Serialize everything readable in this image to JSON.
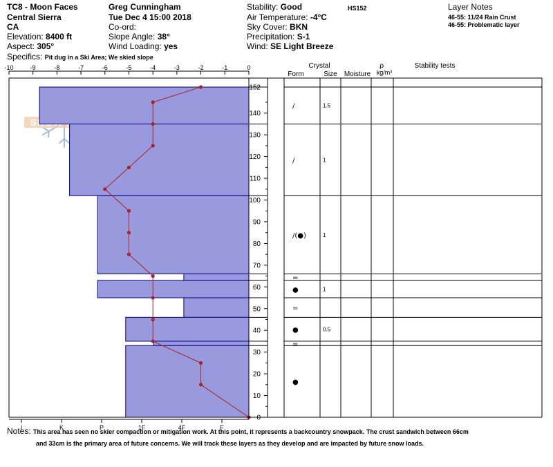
{
  "header": {
    "col1": {
      "title": "TC8 - Moon Faces",
      "range": "Central Sierra",
      "state": "CA",
      "elevation_label": "Elevation:",
      "elevation": "8400 ft",
      "aspect_label": "Aspect:",
      "aspect": "305°",
      "specifics_label": "Specifics:",
      "specifics": "Pit dug in a Ski Area; We skied slope"
    },
    "col2": {
      "observer": "Greg Cunningham",
      "datetime": "Tue Dec 4 15:00 2018",
      "coord_label": "Co-ord:",
      "slope_label": "Slope Angle:",
      "slope": "38°",
      "wind_loading_label": "Wind Loading:",
      "wind_loading": "yes"
    },
    "col3": {
      "stability_label": "Stability:",
      "stability": "Good",
      "hs": "HS152",
      "air_temp_label": "Air Temperature:",
      "air_temp": "-4°C",
      "sky_label": "Sky Cover:",
      "sky": "BKN",
      "precip_label": "Precipitation:",
      "precip": "S-1",
      "wind_label": "Wind:",
      "wind": "SE Light Breeze"
    },
    "layer_notes": {
      "title": "Layer Notes",
      "items": [
        "46-55: 11/24 Rain Crust",
        "46-55: Problematic layer"
      ]
    }
  },
  "logo_text": "SNOW PILOT",
  "table": {
    "crystal_label": "Crystal",
    "form_label": "Form",
    "size_label": "Size",
    "moisture_label": "Moisture",
    "rho_label": "ρ",
    "density_label": "kg/m³",
    "stability_tests_label": "Stability tests"
  },
  "chart_data": {
    "type": "bar",
    "temperature_axis": {
      "ticks": [
        -10,
        -9,
        -8,
        -7,
        -6,
        -5,
        -4,
        -3,
        -2,
        -1,
        0
      ],
      "range": [
        -10,
        0
      ]
    },
    "hardness_axis": {
      "ticks": [
        "I",
        "K",
        "P",
        "1F",
        "4F",
        "F"
      ]
    },
    "height_axis": {
      "ticks": [
        0,
        10,
        20,
        30,
        40,
        50,
        60,
        70,
        80,
        90,
        100,
        110,
        120,
        130,
        140,
        152
      ],
      "range": [
        0,
        152
      ]
    },
    "hardness_layers": [
      {
        "top": 152,
        "bottom": 135,
        "hardness": 0.45
      },
      {
        "top": 135,
        "bottom": 102,
        "hardness": 1.2
      },
      {
        "top": 102,
        "bottom": 66,
        "hardness": 1.9
      },
      {
        "top": 66,
        "bottom": 63,
        "hardness": 4.05
      },
      {
        "top": 63,
        "bottom": 55,
        "hardness": 1.9
      },
      {
        "top": 55,
        "bottom": 46,
        "hardness": 4.05
      },
      {
        "top": 46,
        "bottom": 35,
        "hardness": 2.6
      },
      {
        "top": 35,
        "bottom": 33,
        "hardness": 3.3
      },
      {
        "top": 33,
        "bottom": 0,
        "hardness": 2.6
      }
    ],
    "temperature_profile": [
      {
        "depth": 152,
        "temp": -2
      },
      {
        "depth": 145,
        "temp": -4
      },
      {
        "depth": 135,
        "temp": -4
      },
      {
        "depth": 125,
        "temp": -4
      },
      {
        "depth": 115,
        "temp": -5
      },
      {
        "depth": 105,
        "temp": -6
      },
      {
        "depth": 95,
        "temp": -5
      },
      {
        "depth": 85,
        "temp": -5
      },
      {
        "depth": 75,
        "temp": -5
      },
      {
        "depth": 65,
        "temp": -4
      },
      {
        "depth": 55,
        "temp": -4
      },
      {
        "depth": 45,
        "temp": -4
      },
      {
        "depth": 35,
        "temp": -4
      },
      {
        "depth": 25,
        "temp": -2
      },
      {
        "depth": 15,
        "temp": -2
      },
      {
        "depth": 0,
        "temp": 0
      }
    ],
    "layer_boundaries": [
      152,
      135,
      102,
      66,
      63,
      55,
      46,
      35,
      33,
      0
    ],
    "layers": [
      {
        "top": 152,
        "bottom": 135,
        "form": "/",
        "size": "1.5"
      },
      {
        "top": 135,
        "bottom": 102,
        "form": "/",
        "size": "1"
      },
      {
        "top": 102,
        "bottom": 66,
        "form": "/(●)",
        "size": "1"
      },
      {
        "top": 66,
        "bottom": 63,
        "form": "=",
        "size": ""
      },
      {
        "top": 63,
        "bottom": 55,
        "form": "●",
        "size": "1"
      },
      {
        "top": 55,
        "bottom": 46,
        "form": "=",
        "size": ""
      },
      {
        "top": 46,
        "bottom": 35,
        "form": "●",
        "size": "0.5"
      },
      {
        "top": 35,
        "bottom": 33,
        "form": "=",
        "size": ""
      },
      {
        "top": 33,
        "bottom": 0,
        "form": "●",
        "size": ""
      }
    ]
  },
  "notes": {
    "label": "Notes:",
    "line1": "This area has seen no skier compaction or mitigation work.  At this point, it represents a backcountry snowpack.  The crust sandwich between 66cm",
    "line2": "and 33cm is the primary area of future concerns.  We will track these layers as they develop and are impacted by future snow loads."
  },
  "colors": {
    "hardness_fill": "#9999dd",
    "hardness_stroke": "#000080",
    "temperature_line": "#aa2222"
  }
}
